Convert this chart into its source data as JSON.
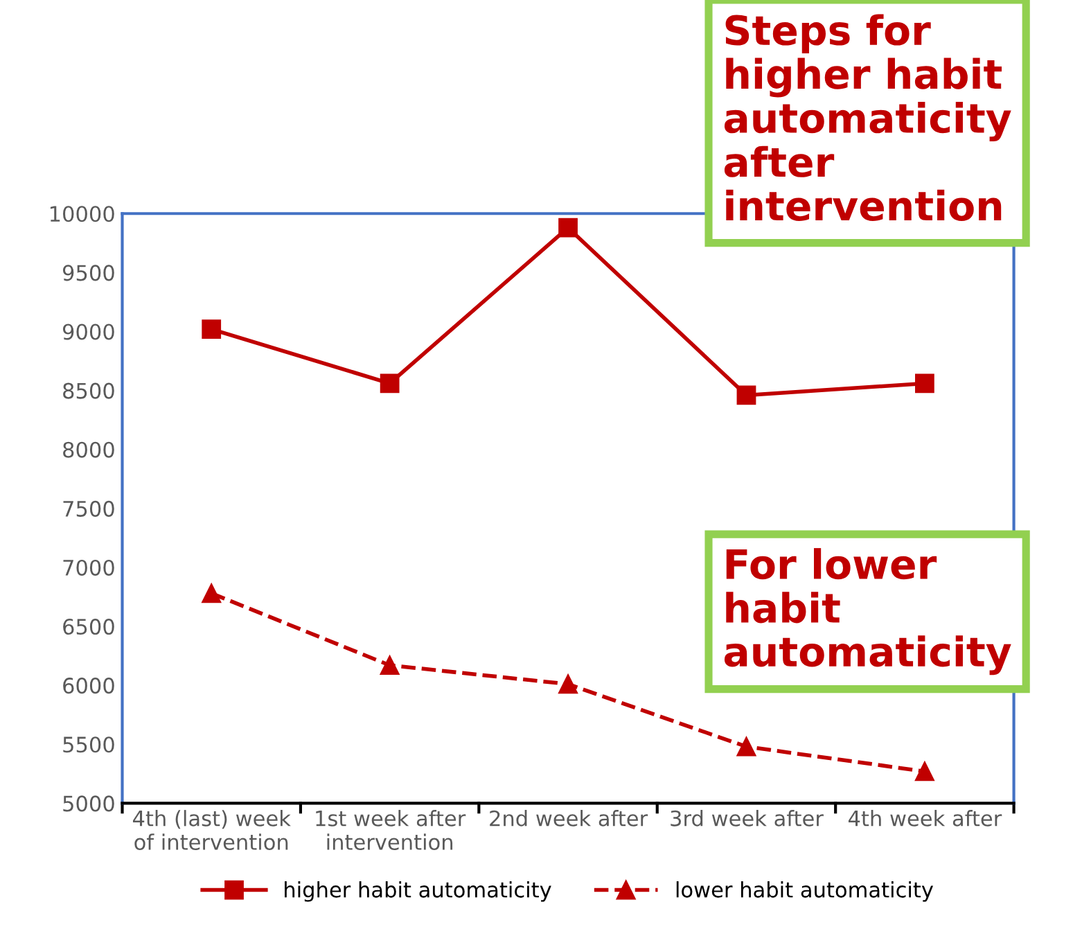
{
  "chart_data": {
    "type": "line",
    "categories": [
      "4th (last) week\nof intervention",
      "1st week after\nintervention",
      "2nd week after",
      "3rd week after",
      "4th week after"
    ],
    "series": [
      {
        "name": "higher habit automaticity",
        "color": "#c00000",
        "marker": "square",
        "line_style": "solid",
        "values": [
          9020,
          8560,
          9880,
          8460,
          8560
        ]
      },
      {
        "name": "lower habit automaticity",
        "color": "#c00000",
        "marker": "triangle",
        "line_style": "dashed",
        "values": [
          6780,
          6170,
          6010,
          5480,
          5270
        ]
      }
    ],
    "ylim": [
      5000,
      10000
    ],
    "yticks": [
      5000,
      5500,
      6000,
      6500,
      7000,
      7500,
      8000,
      8500,
      9000,
      9500,
      10000
    ],
    "grid": false,
    "legend": "bottom",
    "annotations": [
      "Steps for\nhigher habit\nautomaticity\nafter\nintervention",
      "For lower\nhabit\nautomaticity"
    ]
  }
}
